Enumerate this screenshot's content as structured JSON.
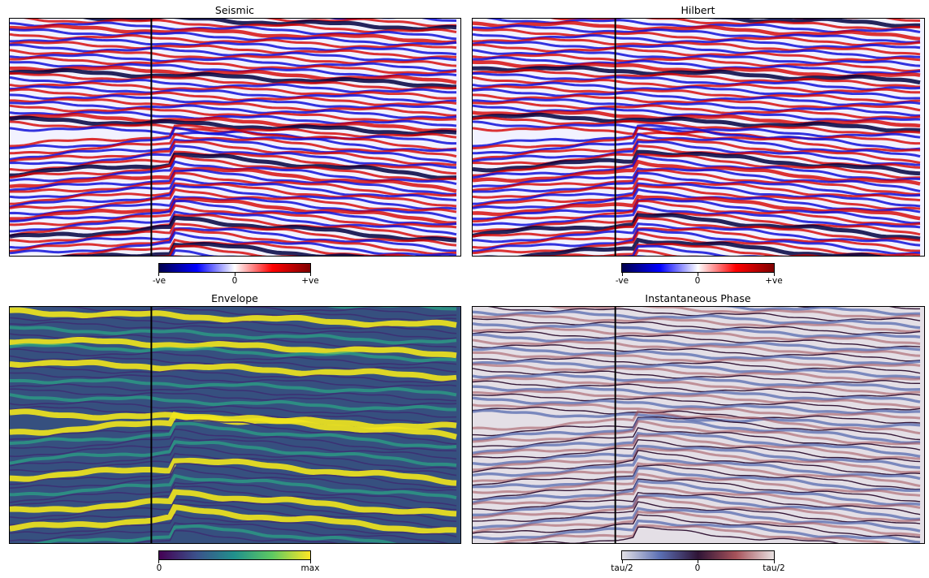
{
  "panels": {
    "seismic": {
      "title": "Seismic"
    },
    "hilbert": {
      "title": "Hilbert"
    },
    "envelope": {
      "title": "Envelope"
    },
    "phase": {
      "title": "Instantaneous Phase"
    }
  },
  "colorbars": {
    "seismic": {
      "ticks": [
        "-ve",
        "0",
        "+ve"
      ],
      "colors": [
        "#00004c",
        "#0000ff",
        "#ffffff",
        "#ff0000",
        "#7f0000"
      ]
    },
    "hilbert": {
      "ticks": [
        "-ve",
        "0",
        "+ve"
      ],
      "colors": [
        "#00004c",
        "#0000ff",
        "#ffffff",
        "#ff0000",
        "#7f0000"
      ]
    },
    "envelope": {
      "ticks": [
        "0",
        "max"
      ],
      "colors": [
        "#440154",
        "#3b528b",
        "#21918c",
        "#5ec962",
        "#fde725"
      ]
    },
    "phase": {
      "ticks": [
        "tau/2",
        "0",
        "tau/2"
      ],
      "colors": [
        "#e3e1e6",
        "#5b6fb3",
        "#2f1436",
        "#a6525a",
        "#e8e1e1"
      ]
    }
  },
  "theme": {
    "seismic_positive": "#d40000",
    "seismic_negative": "#1010d8",
    "seismic_strong": "#00003f",
    "envelope_bg": "#3d2d73",
    "envelope_bright": "#f1e51d",
    "phase_dark": "#2b0d2e"
  }
}
